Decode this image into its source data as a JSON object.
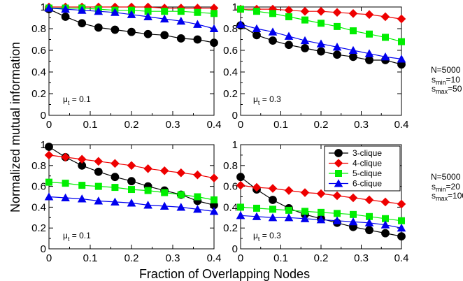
{
  "figure": {
    "xlabel": "Fraction of Overlapping Nodes",
    "ylabel": "Normalized mutual information",
    "colors": {
      "3-clique": "#000000",
      "4-clique": "#ee0000",
      "5-clique": "#00ee00",
      "6-clique": "#0000ee"
    },
    "legend": {
      "placement": "top-right of lower-right panel",
      "entries": [
        "3-clique",
        "4-clique",
        "5-clique",
        "6-clique"
      ]
    },
    "param_top": {
      "n": "N=5000",
      "smin_s": "s",
      "smin_sub": "min",
      "smin_val": "=10",
      "smax_s": "s",
      "smax_sub": "max",
      "smax_val": "=50"
    },
    "param_bottom": {
      "n": "N=5000",
      "smin_s": "s",
      "smin_sub": "min",
      "smin_val": "=20",
      "smax_s": "s",
      "smax_sub": "max",
      "smax_val": "=100"
    }
  },
  "chart_data": [
    {
      "type": "line",
      "panel": "top-left",
      "annotation": {
        "mu": "μ",
        "sub": "t",
        "value": " = 0.1"
      },
      "xlim": [
        0,
        0.4
      ],
      "ylim": [
        0,
        1
      ],
      "x_ticks": [
        "0",
        "0.1",
        "0.2",
        "0.3",
        "0.4"
      ],
      "y_ticks": [
        "0",
        "0.2",
        "0.4",
        "0.6",
        "0.8",
        "1"
      ],
      "x": [
        0,
        0.04,
        0.08,
        0.12,
        0.16,
        0.2,
        0.24,
        0.28,
        0.32,
        0.36,
        0.4
      ],
      "series": [
        {
          "name": "3-clique",
          "marker": "circle",
          "values": [
            0.98,
            0.91,
            0.85,
            0.81,
            0.79,
            0.77,
            0.75,
            0.74,
            0.71,
            0.7,
            0.67
          ]
        },
        {
          "name": "4-clique",
          "marker": "diamond",
          "values": [
            1.0,
            1.0,
            1.0,
            1.0,
            1.0,
            1.0,
            1.0,
            0.99,
            0.99,
            0.99,
            0.99
          ]
        },
        {
          "name": "5-clique",
          "marker": "square",
          "values": [
            0.99,
            0.99,
            0.99,
            0.98,
            0.97,
            0.97,
            0.96,
            0.96,
            0.96,
            0.95,
            0.94
          ]
        },
        {
          "name": "6-clique",
          "marker": "triangle",
          "values": [
            0.99,
            0.98,
            0.97,
            0.96,
            0.95,
            0.93,
            0.91,
            0.89,
            0.87,
            0.84,
            0.8
          ]
        }
      ]
    },
    {
      "type": "line",
      "panel": "top-right",
      "annotation": {
        "mu": "μ",
        "sub": "t",
        "value": " = 0.3"
      },
      "xlim": [
        0,
        0.4
      ],
      "ylim": [
        0,
        1
      ],
      "x_ticks": [
        "0",
        "0.1",
        "0.2",
        "0.3",
        "0.4"
      ],
      "y_ticks": [
        "0",
        "0.2",
        "0.4",
        "0.6",
        "0.8",
        "1"
      ],
      "x": [
        0,
        0.04,
        0.08,
        0.12,
        0.16,
        0.2,
        0.24,
        0.28,
        0.32,
        0.36,
        0.4
      ],
      "series": [
        {
          "name": "3-clique",
          "marker": "circle",
          "values": [
            0.83,
            0.74,
            0.69,
            0.65,
            0.62,
            0.59,
            0.56,
            0.54,
            0.51,
            0.51,
            0.47
          ]
        },
        {
          "name": "4-clique",
          "marker": "diamond",
          "values": [
            0.98,
            0.98,
            0.98,
            0.97,
            0.96,
            0.96,
            0.95,
            0.94,
            0.93,
            0.91,
            0.89
          ]
        },
        {
          "name": "5-clique",
          "marker": "square",
          "values": [
            0.98,
            0.96,
            0.94,
            0.91,
            0.88,
            0.85,
            0.82,
            0.78,
            0.75,
            0.72,
            0.68
          ]
        },
        {
          "name": "6-clique",
          "marker": "triangle",
          "values": [
            0.84,
            0.8,
            0.77,
            0.73,
            0.69,
            0.66,
            0.63,
            0.6,
            0.57,
            0.54,
            0.52
          ]
        }
      ]
    },
    {
      "type": "line",
      "panel": "bottom-left",
      "annotation": {
        "mu": "μ",
        "sub": "t",
        "value": " = 0.1"
      },
      "xlim": [
        0,
        0.4
      ],
      "ylim": [
        0,
        1
      ],
      "x_ticks": [
        "0",
        "0.1",
        "0.2",
        "0.3",
        "0.4"
      ],
      "y_ticks": [
        "0",
        "0.2",
        "0.4",
        "0.6",
        "0.8",
        "1"
      ],
      "x": [
        0,
        0.04,
        0.08,
        0.12,
        0.16,
        0.2,
        0.24,
        0.28,
        0.32,
        0.36,
        0.4
      ],
      "series": [
        {
          "name": "3-clique",
          "marker": "circle",
          "values": [
            0.98,
            0.88,
            0.8,
            0.74,
            0.69,
            0.65,
            0.6,
            0.56,
            0.52,
            0.46,
            0.42
          ]
        },
        {
          "name": "4-clique",
          "marker": "diamond",
          "values": [
            0.9,
            0.88,
            0.86,
            0.84,
            0.82,
            0.8,
            0.77,
            0.75,
            0.73,
            0.71,
            0.68
          ]
        },
        {
          "name": "5-clique",
          "marker": "square",
          "values": [
            0.64,
            0.63,
            0.61,
            0.6,
            0.59,
            0.57,
            0.56,
            0.54,
            0.52,
            0.5,
            0.47
          ]
        },
        {
          "name": "6-clique",
          "marker": "triangle",
          "values": [
            0.5,
            0.49,
            0.48,
            0.46,
            0.45,
            0.44,
            0.42,
            0.41,
            0.4,
            0.38,
            0.36
          ]
        }
      ]
    },
    {
      "type": "line",
      "panel": "bottom-right",
      "annotation": {
        "mu": "μ",
        "sub": "t",
        "value": " = 0.3"
      },
      "xlim": [
        0,
        0.4
      ],
      "ylim": [
        0,
        1
      ],
      "x_ticks": [
        "0",
        "0.1",
        "0.2",
        "0.3",
        "0.4"
      ],
      "y_ticks": [
        "0",
        "0.2",
        "0.4",
        "0.6",
        "0.8",
        "1"
      ],
      "x": [
        0,
        0.04,
        0.08,
        0.12,
        0.16,
        0.2,
        0.24,
        0.28,
        0.32,
        0.36,
        0.4
      ],
      "series": [
        {
          "name": "3-clique",
          "marker": "circle",
          "values": [
            0.69,
            0.57,
            0.47,
            0.39,
            0.33,
            0.29,
            0.25,
            0.21,
            0.18,
            0.15,
            0.12
          ]
        },
        {
          "name": "4-clique",
          "marker": "diamond",
          "values": [
            0.61,
            0.59,
            0.58,
            0.56,
            0.54,
            0.53,
            0.51,
            0.49,
            0.47,
            0.45,
            0.43
          ]
        },
        {
          "name": "5-clique",
          "marker": "square",
          "values": [
            0.4,
            0.39,
            0.38,
            0.37,
            0.36,
            0.35,
            0.34,
            0.33,
            0.31,
            0.29,
            0.27
          ]
        },
        {
          "name": "6-clique",
          "marker": "triangle",
          "values": [
            0.32,
            0.31,
            0.3,
            0.3,
            0.29,
            0.28,
            0.27,
            0.26,
            0.25,
            0.23,
            0.2
          ]
        }
      ]
    }
  ]
}
